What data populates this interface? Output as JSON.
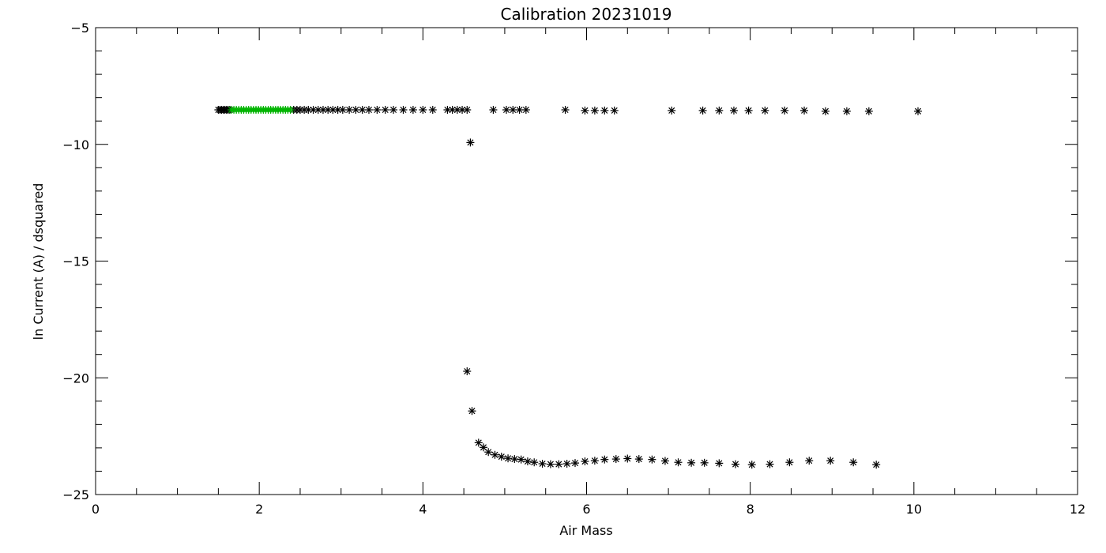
{
  "chart_data": {
    "type": "scatter",
    "title": "Calibration 20231019",
    "xlabel": "Air Mass",
    "ylabel": "ln Current (A) / dsquared",
    "xlim": [
      0,
      12
    ],
    "ylim": [
      -25,
      -5
    ],
    "x_ticks": [
      0,
      2,
      4,
      6,
      8,
      10,
      12
    ],
    "x_tick_labels": [
      "0",
      "2",
      "4",
      "6",
      "8",
      "10",
      "12"
    ],
    "y_ticks": [
      -25,
      -20,
      -15,
      -10,
      -5
    ],
    "y_tick_labels": [
      "−25",
      "−20",
      "−15",
      "−10",
      "−5"
    ],
    "grid": false,
    "marker": "asterisk",
    "series": [
      {
        "color": "#000000",
        "points": [
          [
            1.5,
            -8.52
          ],
          [
            1.52,
            -8.52
          ],
          [
            1.54,
            -8.52
          ],
          [
            1.56,
            -8.52
          ],
          [
            1.58,
            -8.52
          ],
          [
            1.6,
            -8.52
          ],
          [
            1.62,
            -8.52
          ],
          [
            1.64,
            -8.52
          ],
          [
            2.42,
            -8.52
          ],
          [
            2.46,
            -8.52
          ],
          [
            2.5,
            -8.52
          ],
          [
            2.55,
            -8.52
          ],
          [
            2.6,
            -8.52
          ],
          [
            2.66,
            -8.52
          ],
          [
            2.72,
            -8.52
          ],
          [
            2.78,
            -8.52
          ],
          [
            2.84,
            -8.52
          ],
          [
            2.9,
            -8.52
          ],
          [
            2.96,
            -8.52
          ],
          [
            3.02,
            -8.52
          ],
          [
            3.1,
            -8.52
          ],
          [
            3.18,
            -8.52
          ],
          [
            3.26,
            -8.52
          ],
          [
            3.34,
            -8.52
          ],
          [
            3.44,
            -8.52
          ],
          [
            3.54,
            -8.52
          ],
          [
            3.64,
            -8.52
          ],
          [
            3.76,
            -8.52
          ],
          [
            3.88,
            -8.52
          ],
          [
            4.0,
            -8.52
          ],
          [
            4.12,
            -8.52
          ],
          [
            4.3,
            -8.52
          ],
          [
            4.36,
            -8.52
          ],
          [
            4.42,
            -8.52
          ],
          [
            4.48,
            -8.52
          ],
          [
            4.54,
            -8.52
          ],
          [
            4.86,
            -8.52
          ],
          [
            5.02,
            -8.52
          ],
          [
            5.1,
            -8.52
          ],
          [
            5.18,
            -8.52
          ],
          [
            5.26,
            -8.52
          ],
          [
            5.74,
            -8.52
          ],
          [
            5.98,
            -8.55
          ],
          [
            6.1,
            -8.55
          ],
          [
            6.22,
            -8.55
          ],
          [
            6.34,
            -8.55
          ],
          [
            7.04,
            -8.55
          ],
          [
            7.42,
            -8.55
          ],
          [
            7.62,
            -8.55
          ],
          [
            7.8,
            -8.55
          ],
          [
            7.98,
            -8.55
          ],
          [
            8.18,
            -8.55
          ],
          [
            8.42,
            -8.55
          ],
          [
            8.66,
            -8.55
          ],
          [
            8.92,
            -8.58
          ],
          [
            9.18,
            -8.58
          ],
          [
            9.45,
            -8.58
          ],
          [
            10.05,
            -8.58
          ],
          [
            4.58,
            -9.92
          ],
          [
            4.54,
            -19.72
          ],
          [
            4.6,
            -21.42
          ],
          [
            4.68,
            -22.78
          ],
          [
            4.74,
            -22.98
          ],
          [
            4.8,
            -23.18
          ],
          [
            4.88,
            -23.3
          ],
          [
            4.96,
            -23.38
          ],
          [
            5.04,
            -23.45
          ],
          [
            5.12,
            -23.48
          ],
          [
            5.2,
            -23.5
          ],
          [
            5.28,
            -23.58
          ],
          [
            5.36,
            -23.62
          ],
          [
            5.46,
            -23.68
          ],
          [
            5.56,
            -23.7
          ],
          [
            5.66,
            -23.7
          ],
          [
            5.76,
            -23.68
          ],
          [
            5.86,
            -23.65
          ],
          [
            5.98,
            -23.58
          ],
          [
            6.1,
            -23.55
          ],
          [
            6.22,
            -23.5
          ],
          [
            6.36,
            -23.48
          ],
          [
            6.5,
            -23.46
          ],
          [
            6.64,
            -23.48
          ],
          [
            6.8,
            -23.5
          ],
          [
            6.96,
            -23.56
          ],
          [
            7.12,
            -23.62
          ],
          [
            7.28,
            -23.64
          ],
          [
            7.44,
            -23.64
          ],
          [
            7.62,
            -23.66
          ],
          [
            7.82,
            -23.7
          ],
          [
            8.02,
            -23.72
          ],
          [
            8.24,
            -23.7
          ],
          [
            8.48,
            -23.62
          ],
          [
            8.72,
            -23.55
          ],
          [
            8.98,
            -23.55
          ],
          [
            9.26,
            -23.62
          ],
          [
            9.54,
            -23.72
          ]
        ]
      },
      {
        "color": "#00b400",
        "points": [
          [
            1.66,
            -8.52
          ],
          [
            1.69,
            -8.52
          ],
          [
            1.72,
            -8.52
          ],
          [
            1.75,
            -8.52
          ],
          [
            1.78,
            -8.52
          ],
          [
            1.81,
            -8.52
          ],
          [
            1.84,
            -8.52
          ],
          [
            1.87,
            -8.52
          ],
          [
            1.9,
            -8.52
          ],
          [
            1.93,
            -8.52
          ],
          [
            1.96,
            -8.52
          ],
          [
            1.99,
            -8.52
          ],
          [
            2.02,
            -8.52
          ],
          [
            2.05,
            -8.52
          ],
          [
            2.08,
            -8.52
          ],
          [
            2.11,
            -8.52
          ],
          [
            2.14,
            -8.52
          ],
          [
            2.17,
            -8.52
          ],
          [
            2.2,
            -8.52
          ],
          [
            2.23,
            -8.52
          ],
          [
            2.26,
            -8.52
          ],
          [
            2.29,
            -8.52
          ],
          [
            2.32,
            -8.52
          ],
          [
            2.35,
            -8.52
          ],
          [
            2.38,
            -8.52
          ]
        ]
      }
    ]
  }
}
